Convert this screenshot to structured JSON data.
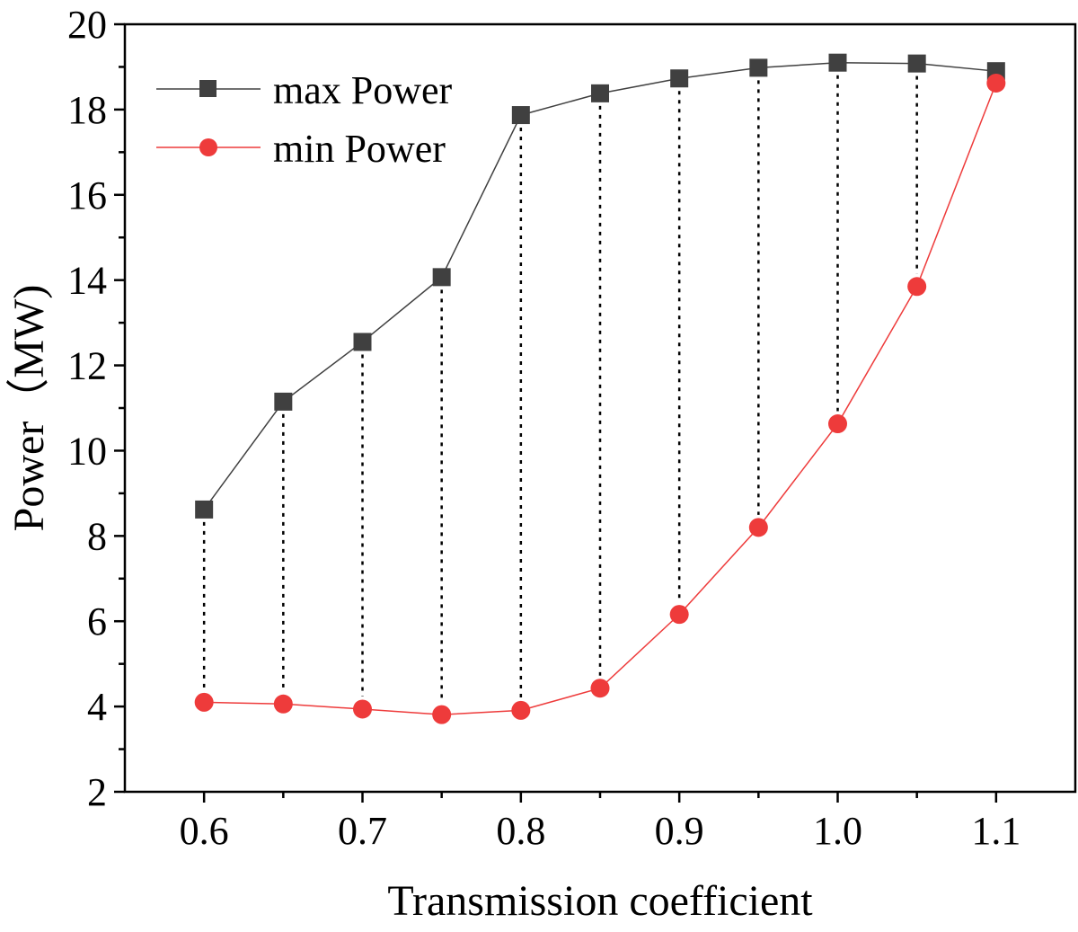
{
  "chart_data": {
    "type": "line",
    "title": "",
    "xlabel": "Transmission coefficient",
    "ylabel": "Power（MW)",
    "x": [
      0.6,
      0.65,
      0.7,
      0.75,
      0.8,
      0.85,
      0.9,
      0.95,
      1.0,
      1.05,
      1.1
    ],
    "xticks": [
      "0.6",
      "0.7",
      "0.8",
      "0.9",
      "1.0",
      "1.1"
    ],
    "xtick_values": [
      0.6,
      0.7,
      0.8,
      0.9,
      1.0,
      1.1
    ],
    "yticks": [
      "2",
      "4",
      "6",
      "8",
      "10",
      "12",
      "14",
      "16",
      "18",
      "20"
    ],
    "ytick_values": [
      2,
      4,
      6,
      8,
      10,
      12,
      14,
      16,
      18,
      20
    ],
    "xlim": [
      0.55,
      1.15
    ],
    "ylim": [
      2,
      20
    ],
    "grid": false,
    "legend_position": "top-left",
    "drop_lines": "dotted vertical lines connecting max and min at each x",
    "series": [
      {
        "name": "max Power",
        "marker": "square",
        "color": "#404040",
        "values": [
          8.62,
          11.15,
          12.55,
          14.07,
          17.87,
          18.38,
          18.73,
          18.98,
          19.1,
          19.08,
          18.9
        ]
      },
      {
        "name": "min Power",
        "marker": "circle",
        "color": "#ee3b3b",
        "values": [
          4.1,
          4.06,
          3.94,
          3.81,
          3.91,
          4.43,
          6.16,
          8.2,
          10.63,
          13.85,
          18.62
        ]
      }
    ]
  }
}
